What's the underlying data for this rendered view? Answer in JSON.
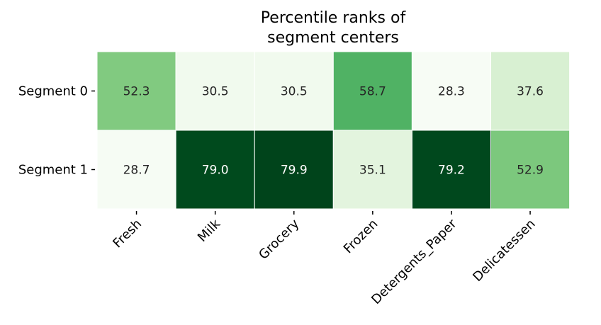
{
  "chart_data": {
    "type": "heatmap",
    "title": "Percentile ranks of segment centers",
    "title_lines": [
      "Percentile ranks of",
      "segment centers"
    ],
    "rows": [
      "Segment 0",
      "Segment 1"
    ],
    "columns": [
      "Fresh",
      "Milk",
      "Grocery",
      "Frozen",
      "Detergents_Paper",
      "Delicatessen"
    ],
    "values": [
      [
        52.3,
        30.5,
        30.5,
        58.7,
        28.3,
        37.6
      ],
      [
        28.7,
        79.0,
        79.9,
        35.1,
        79.2,
        52.9
      ]
    ],
    "value_labels": [
      [
        "52.3",
        "30.5",
        "30.5",
        "58.7",
        "28.3",
        "37.6"
      ],
      [
        "28.7",
        "79.0",
        "79.9",
        "35.1",
        "79.2",
        "52.9"
      ]
    ],
    "colormap": "Greens",
    "colors": {
      "low": "#f7fcf5",
      "high": "#00441b",
      "text_dark": "#262626",
      "text_light": "#ffffff",
      "cell_border": "#ffffff"
    },
    "grid": false,
    "colorbar": false
  }
}
